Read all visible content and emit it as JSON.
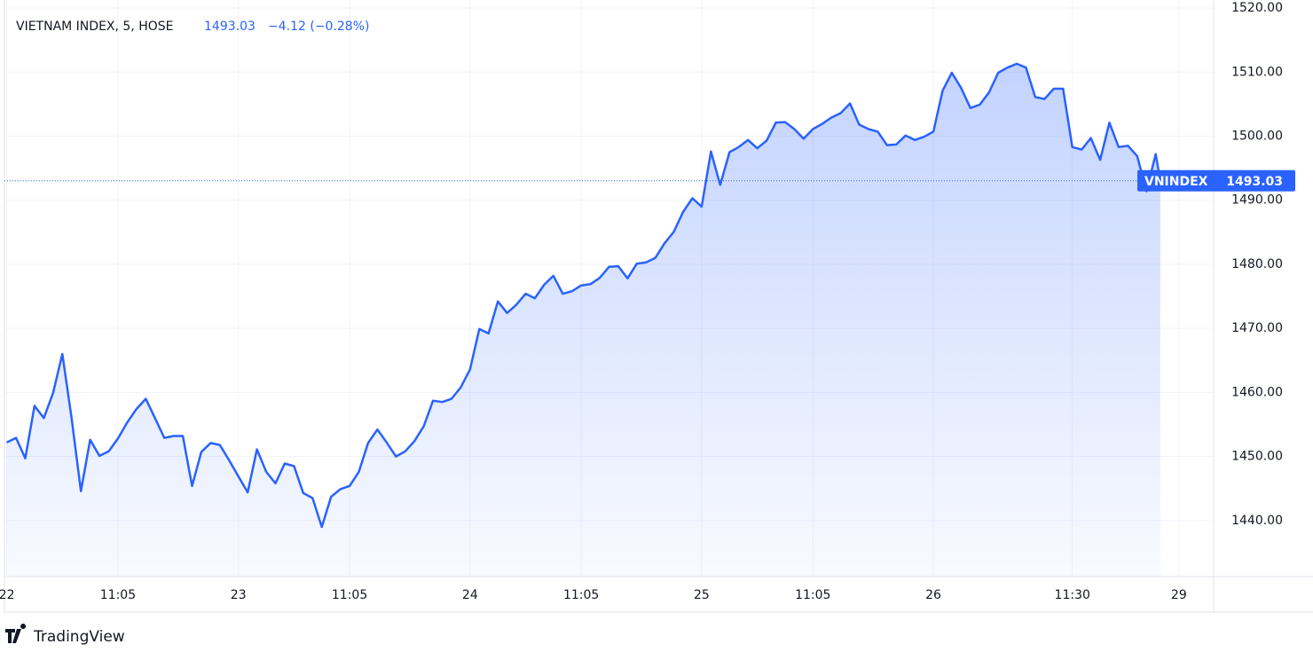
{
  "chart_data": {
    "type": "line",
    "header": {
      "symbol": "VIETNAM INDEX, 5, HOSE",
      "price": "1493.03",
      "change": "−4.12 (−0.28%)"
    },
    "branding": "TradingView",
    "price_line": {
      "name": "VNINDEX",
      "value": 1493.03
    },
    "xlim": [
      -0.5,
      260.5
    ],
    "xticks": [
      {
        "value": 0,
        "label": "22"
      },
      {
        "value": 24,
        "label": "11:05"
      },
      {
        "value": 50,
        "label": "23"
      },
      {
        "value": 74,
        "label": "11:05"
      },
      {
        "value": 100,
        "label": "24"
      },
      {
        "value": 124,
        "label": "11:05"
      },
      {
        "value": 150,
        "label": "25"
      },
      {
        "value": 174,
        "label": "11:05"
      },
      {
        "value": 200,
        "label": "26"
      },
      {
        "value": 230,
        "label": "11:30"
      },
      {
        "value": 253,
        "label": "29"
      }
    ],
    "ylim": [
      1431.25,
      1521.25
    ],
    "yticks": [
      {
        "value": 1440,
        "label": "1440.00"
      },
      {
        "value": 1450,
        "label": "1450.00"
      },
      {
        "value": 1460,
        "label": "1460.00"
      },
      {
        "value": 1470,
        "label": "1470.00"
      },
      {
        "value": 1480,
        "label": "1480.00"
      },
      {
        "value": 1490,
        "label": "1490.00"
      },
      {
        "value": 1500,
        "label": "1500.00"
      },
      {
        "value": 1510,
        "label": "1510.00"
      },
      {
        "value": 1520,
        "label": "1520.00"
      }
    ],
    "grid": true,
    "x": [
      0,
      2,
      4,
      6,
      8,
      10,
      12,
      14,
      16,
      18,
      20,
      22,
      24,
      26,
      28,
      30,
      32,
      34,
      36,
      38,
      40,
      42,
      44,
      46,
      48,
      50,
      52,
      54,
      56,
      58,
      60,
      62,
      64,
      66,
      68,
      70,
      72,
      74,
      76,
      78,
      80,
      82,
      84,
      86,
      88,
      90,
      92,
      94,
      96,
      98,
      100,
      102,
      104,
      106,
      108,
      110,
      112,
      114,
      116,
      118,
      120,
      122,
      124,
      126,
      128,
      130,
      132,
      134,
      136,
      138,
      140,
      142,
      144,
      146,
      148,
      150,
      152,
      154,
      156,
      158,
      160,
      162,
      164,
      166,
      168,
      170,
      172,
      174,
      176,
      178,
      180,
      182,
      184,
      186,
      188,
      190,
      192,
      194,
      196,
      198,
      200,
      202,
      204,
      206,
      208,
      210,
      212,
      214,
      216,
      218,
      220,
      222,
      224,
      226,
      228,
      230,
      232,
      234,
      236,
      238,
      240,
      242,
      244,
      246,
      248,
      249
    ],
    "series": [
      {
        "name": "VNINDEX",
        "color": "#2962ff",
        "values": [
          1452.2,
          1452.9,
          1449.7,
          1457.9,
          1456.0,
          1459.9,
          1466.0,
          1456.0,
          1444.6,
          1452.6,
          1450.1,
          1450.8,
          1452.8,
          1455.3,
          1457.4,
          1459.0,
          1456.0,
          1452.9,
          1453.2,
          1453.2,
          1445.4,
          1450.7,
          1452.1,
          1451.8,
          1449.4,
          1446.9,
          1444.4,
          1451.1,
          1447.6,
          1445.8,
          1448.9,
          1448.5,
          1444.3,
          1443.5,
          1439.0,
          1443.7,
          1444.9,
          1445.4,
          1447.6,
          1452.1,
          1454.2,
          1452.2,
          1450.0,
          1450.8,
          1452.4,
          1454.7,
          1458.7,
          1458.5,
          1459.0,
          1460.8,
          1463.6,
          1469.9,
          1469.2,
          1474.2,
          1472.4,
          1473.7,
          1475.4,
          1474.7,
          1476.8,
          1478.2,
          1475.4,
          1475.8,
          1476.7,
          1476.9,
          1477.9,
          1479.6,
          1479.7,
          1477.8,
          1480.1,
          1480.3,
          1481.0,
          1483.3,
          1485.1,
          1488.2,
          1490.3,
          1489.0,
          1497.6,
          1492.4,
          1497.5,
          1498.3,
          1499.4,
          1498.1,
          1499.3,
          1502.1,
          1502.2,
          1501.1,
          1499.6,
          1501.1,
          1501.9,
          1502.9,
          1503.6,
          1505.1,
          1501.8,
          1501.1,
          1500.7,
          1498.6,
          1498.7,
          1500.1,
          1499.4,
          1499.9,
          1500.7,
          1507.1,
          1509.9,
          1507.5,
          1504.4,
          1504.9,
          1506.8,
          1509.9,
          1510.7,
          1511.3,
          1510.7,
          1506.1,
          1505.8,
          1507.4,
          1507.4,
          1498.3,
          1497.9,
          1499.7,
          1496.3,
          1502.1,
          1498.3,
          1498.5,
          1496.9,
          1491.4,
          1497.2,
          1493.03
        ]
      }
    ]
  }
}
